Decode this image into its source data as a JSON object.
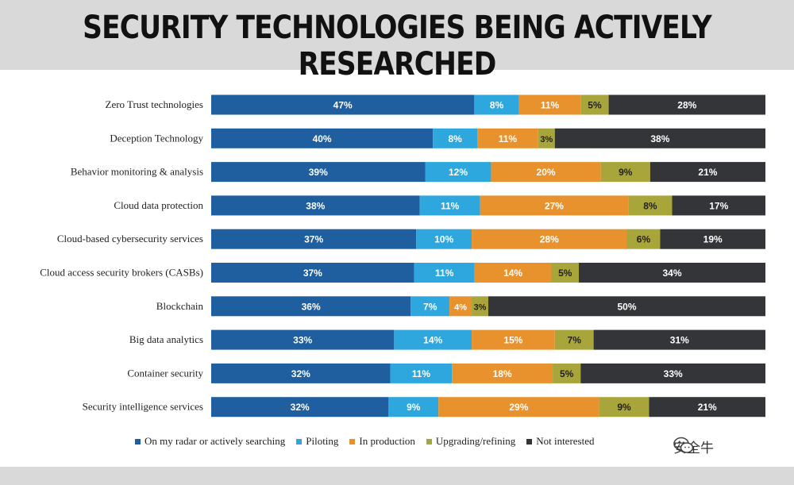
{
  "header": {
    "title": "SECURITY TECHNOLOGIES BEING ACTIVELY RESEARCHED"
  },
  "watermark": {
    "text": "安全牛"
  },
  "chart_data": {
    "type": "bar",
    "orientation": "horizontal",
    "stacked": true,
    "percent_stacked": true,
    "title": "SECURITY TECHNOLOGIES BEING ACTIVELY RESEARCHED",
    "legend_position": "bottom",
    "grid": false,
    "xlim": [
      0,
      100
    ],
    "categories": [
      "Zero Trust technologies",
      "Deception Technology",
      "Behavior monitoring & analysis",
      "Cloud data protection",
      "Cloud-based cybersecurity services",
      "Cloud access security brokers (CASBs)",
      "Blockchain",
      "Big data analytics",
      "Container security",
      "Security intelligence services"
    ],
    "series": [
      {
        "name": "On my radar or actively searching",
        "color": "#1f5fa0",
        "values": [
          47,
          40,
          39,
          38,
          37,
          37,
          36,
          33,
          32,
          32
        ]
      },
      {
        "name": "Piloting",
        "color": "#2ea7de",
        "values": [
          8,
          8,
          12,
          11,
          10,
          11,
          7,
          14,
          11,
          9
        ]
      },
      {
        "name": "In production",
        "color": "#e8922e",
        "values": [
          11,
          11,
          20,
          27,
          28,
          14,
          4,
          15,
          18,
          29
        ]
      },
      {
        "name": "Upgrading/refining",
        "color": "#a8a53a",
        "values": [
          5,
          3,
          9,
          8,
          6,
          5,
          3,
          7,
          5,
          9
        ]
      },
      {
        "name": "Not interested",
        "color": "#333538",
        "values": [
          28,
          38,
          21,
          17,
          19,
          34,
          50,
          31,
          33,
          21
        ]
      }
    ],
    "value_suffix": "%"
  }
}
